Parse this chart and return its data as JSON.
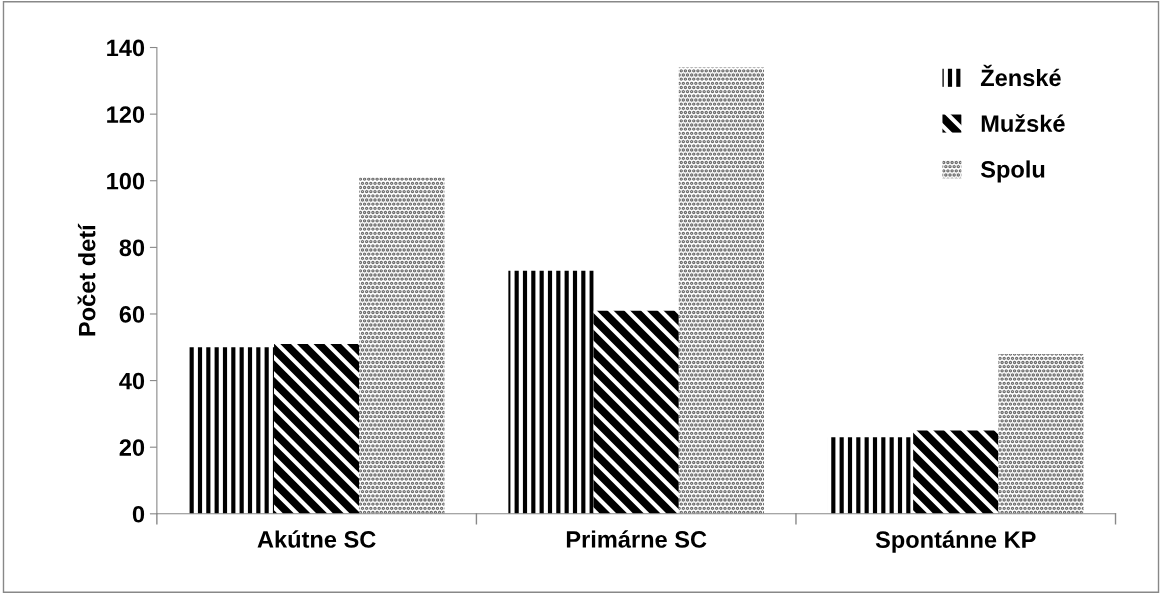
{
  "chart_data": {
    "type": "bar",
    "ylabel": "Počet detí",
    "categories": [
      "Akútne SC",
      "Primárne SC",
      "Spontánne KP"
    ],
    "series": [
      {
        "name": "Ženské",
        "color": "#000000",
        "values": [
          50,
          73,
          23
        ]
      },
      {
        "name": "Mužské",
        "color": "#000000",
        "values": [
          51,
          61,
          25
        ]
      },
      {
        "name": "Spolu",
        "color": "#6e6e6e",
        "values": [
          101,
          134,
          48
        ]
      }
    ],
    "ylim": [
      0,
      140
    ],
    "yticks": [
      0,
      20,
      40,
      60,
      80,
      100,
      120,
      140
    ],
    "grid": false,
    "legend": "top right"
  }
}
